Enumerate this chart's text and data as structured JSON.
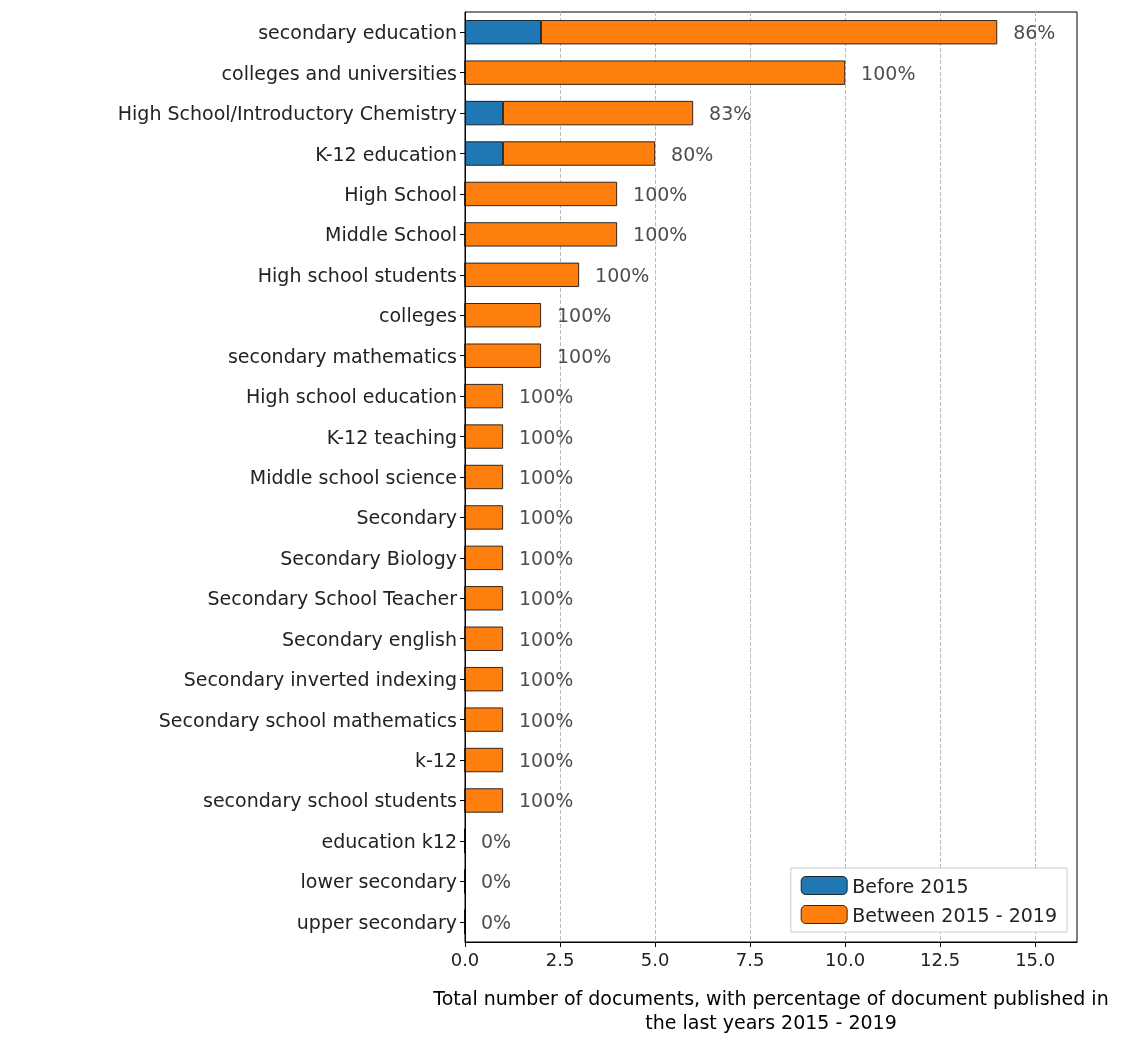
{
  "chart_data": {
    "type": "bar",
    "orientation": "horizontal",
    "stacked": true,
    "xlabel": "Total number of documents, with percentage of document published in the last years 2015 - 2019",
    "categories": [
      "secondary education",
      "colleges and universities",
      "High School/Introductory Chemistry",
      "K-12 education",
      "High School",
      "Middle School",
      "High school students",
      "colleges",
      "secondary mathematics",
      "High school education",
      "K-12 teaching",
      "Middle school science",
      "Secondary",
      "Secondary Biology",
      "Secondary School Teacher",
      "Secondary english",
      "Secondary inverted indexing",
      "Secondary school mathematics",
      "k-12",
      "secondary school students",
      "education k12",
      "lower secondary",
      "upper secondary"
    ],
    "series": [
      {
        "name": "Before 2015",
        "color": "#1f77b4",
        "values": [
          2,
          0,
          1,
          1,
          0,
          0,
          0,
          0,
          0,
          0,
          0,
          0,
          0,
          0,
          0,
          0,
          0,
          0,
          0,
          0,
          0,
          0,
          0
        ]
      },
      {
        "name": "Between 2015 - 2019",
        "color": "#ff7f0e",
        "values": [
          12,
          10,
          5,
          4,
          4,
          4,
          3,
          2,
          2,
          1,
          1,
          1,
          1,
          1,
          1,
          1,
          1,
          1,
          1,
          1,
          0,
          0,
          0
        ]
      }
    ],
    "annotations": [
      {
        "text": "86%",
        "x": 14,
        "y": "secondary education"
      },
      {
        "text": "100%",
        "x": 10,
        "y": "colleges and universities"
      },
      {
        "text": "83%",
        "x": 6,
        "y": "High School/Introductory Chemistry"
      },
      {
        "text": "80%",
        "x": 5,
        "y": "K-12 education"
      },
      {
        "text": "100%",
        "x": 4,
        "y": "High School"
      },
      {
        "text": "100%",
        "x": 4,
        "y": "Middle School"
      },
      {
        "text": "100%",
        "x": 3,
        "y": "High school students"
      },
      {
        "text": "100%",
        "x": 2,
        "y": "colleges"
      },
      {
        "text": "100%",
        "x": 2,
        "y": "secondary mathematics"
      },
      {
        "text": "100%",
        "x": 1,
        "y": "High school education"
      },
      {
        "text": "100%",
        "x": 1,
        "y": "K-12 teaching"
      },
      {
        "text": "100%",
        "x": 1,
        "y": "Middle school science"
      },
      {
        "text": "100%",
        "x": 1,
        "y": "Secondary"
      },
      {
        "text": "100%",
        "x": 1,
        "y": "Secondary Biology"
      },
      {
        "text": "100%",
        "x": 1,
        "y": "Secondary School Teacher"
      },
      {
        "text": "100%",
        "x": 1,
        "y": "Secondary english"
      },
      {
        "text": "100%",
        "x": 1,
        "y": "Secondary inverted indexing"
      },
      {
        "text": "100%",
        "x": 1,
        "y": "Secondary school mathematics"
      },
      {
        "text": "100%",
        "x": 1,
        "y": "k-12"
      },
      {
        "text": "100%",
        "x": 1,
        "y": "secondary school students"
      },
      {
        "text": "0%",
        "x": 0,
        "y": "education k12"
      },
      {
        "text": "0%",
        "x": 0,
        "y": "lower secondary"
      },
      {
        "text": "0%",
        "x": 0,
        "y": "upper secondary"
      }
    ],
    "xlim": [
      0,
      16.1
    ],
    "xticks": [
      {
        "value": 0,
        "label": "0.0"
      },
      {
        "value": 2.5,
        "label": "2.5"
      },
      {
        "value": 5,
        "label": "5.0"
      },
      {
        "value": 7.5,
        "label": "7.5"
      },
      {
        "value": 10,
        "label": "10.0"
      },
      {
        "value": 12.5,
        "label": "12.5"
      },
      {
        "value": 15,
        "label": "15.0"
      }
    ],
    "grid": "x",
    "legend": "bottom right"
  }
}
